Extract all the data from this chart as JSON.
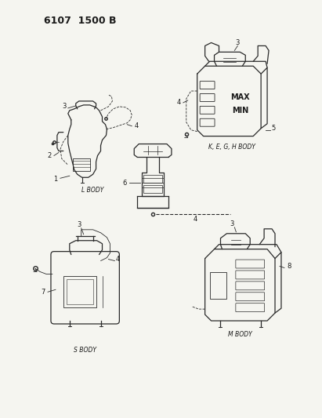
{
  "bg_color": "#f5f5f0",
  "line_color": "#2a2a2a",
  "text_color": "#1a1a1a",
  "fig_width": 4.11,
  "fig_height": 5.33,
  "dpi": 100,
  "header": "6107  1500 B",
  "label_l_body": "L BODY",
  "label_k_body": "K, E, G, H BODY",
  "label_s_body": "S BODY",
  "label_m_body": "M BODY",
  "header_fontsize": 9,
  "label_fontsize": 5.5,
  "part_fontsize": 6.0
}
